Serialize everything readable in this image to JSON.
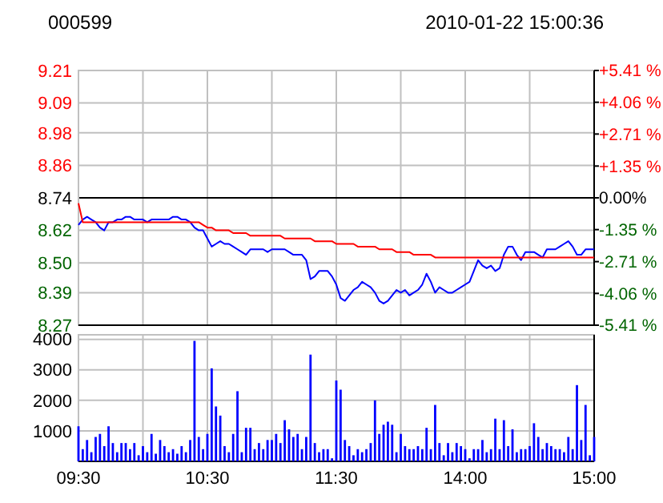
{
  "chart_data": [
    {
      "type": "line",
      "title": "000599",
      "subtitle": "2010-01-22 15:00:36",
      "grid": true,
      "tick_labels": "y",
      "categories": [
        null,
        null,
        null,
        null,
        null,
        null,
        null,
        null,
        null,
        null,
        null,
        null,
        null,
        null,
        null,
        null,
        null,
        null,
        null,
        null,
        null,
        null,
        null,
        null,
        null,
        null,
        null,
        null,
        null,
        null,
        null,
        null,
        null,
        null,
        null,
        null,
        null,
        null,
        null,
        null,
        null,
        null,
        null,
        null,
        null,
        null,
        null,
        null,
        null,
        null,
        null,
        null,
        null,
        null,
        null,
        null,
        null,
        null,
        null,
        null,
        null,
        null,
        null,
        null,
        null,
        null,
        null,
        null,
        null,
        null,
        null,
        null,
        null,
        null,
        null,
        null,
        null,
        null,
        null,
        null,
        null,
        null,
        null,
        null,
        null,
        null,
        null,
        null,
        null,
        null,
        null,
        null,
        null,
        null,
        null,
        null,
        null,
        null,
        null,
        null,
        null,
        null,
        null,
        null,
        null,
        null,
        null,
        null,
        null,
        null,
        null,
        null,
        null,
        null,
        null,
        null,
        null,
        null,
        null,
        null,
        null
      ],
      "ylim": [
        8.27,
        9.21
      ],
      "yticks": [
        {
          "value": 8.27,
          "label": "8.27"
        },
        {
          "value": 8.39,
          "label": "8.39"
        },
        {
          "value": 8.5,
          "label": "8.50"
        },
        {
          "value": 8.62,
          "label": "8.62"
        },
        {
          "value": 8.74,
          "label": "8.74"
        },
        {
          "value": 8.86,
          "label": "8.86"
        },
        {
          "value": 8.98,
          "label": "8.98"
        },
        {
          "value": 9.09,
          "label": "9.09"
        },
        {
          "value": 9.21,
          "label": "9.21"
        }
      ],
      "y2lim": [
        -5.41,
        5.41
      ],
      "y2ticks": [
        {
          "value": -5.41,
          "label": "-5.41 %"
        },
        {
          "value": -4.06,
          "label": "-4.06 %"
        },
        {
          "value": -2.71,
          "label": "-2.71 %"
        },
        {
          "value": -1.35,
          "label": "-1.35 %"
        },
        {
          "value": 0,
          "label": "0.00%"
        },
        {
          "value": 1.35,
          "label": "+1.35 %"
        },
        {
          "value": 2.71,
          "label": "+2.71 %"
        },
        {
          "value": 4.06,
          "label": "+4.06 %"
        },
        {
          "value": 5.41,
          "label": "+5.41 %"
        }
      ],
      "ref_lines": [
        {
          "axis": "y",
          "value": 8.74,
          "color": "#000000"
        }
      ],
      "series": [
        {
          "color": "#0000ff",
          "values": [
            8.64,
            8.66,
            8.67,
            8.66,
            8.65,
            8.63,
            8.62,
            8.65,
            8.65,
            8.66,
            8.66,
            8.67,
            8.67,
            8.66,
            8.66,
            8.66,
            8.65,
            8.66,
            8.66,
            8.66,
            8.66,
            8.66,
            8.67,
            8.67,
            8.66,
            8.66,
            8.65,
            8.63,
            8.62,
            8.62,
            8.59,
            8.56,
            8.57,
            8.58,
            8.57,
            8.57,
            8.56,
            8.55,
            8.54,
            8.53,
            8.55,
            8.55,
            8.55,
            8.55,
            8.54,
            8.55,
            8.55,
            8.55,
            8.55,
            8.54,
            8.53,
            8.53,
            8.53,
            8.51,
            8.44,
            8.45,
            8.47,
            8.47,
            8.47,
            8.45,
            8.42,
            8.37,
            8.36,
            8.38,
            8.4,
            8.41,
            8.43,
            8.42,
            8.41,
            8.39,
            8.36,
            8.35,
            8.36,
            8.38,
            8.4,
            8.39,
            8.4,
            8.38,
            8.39,
            8.4,
            8.42,
            8.46,
            8.43,
            8.39,
            8.41,
            8.4,
            8.39,
            8.39,
            8.4,
            8.41,
            8.42,
            8.43,
            8.47,
            8.51,
            8.49,
            8.48,
            8.49,
            8.47,
            8.48,
            8.53,
            8.56,
            8.56,
            8.53,
            8.51,
            8.54,
            8.54,
            8.54,
            8.53,
            8.52,
            8.55,
            8.55,
            8.55,
            8.56,
            8.57,
            8.58,
            8.56,
            8.53,
            8.53,
            8.55,
            8.55,
            8.55
          ]
        },
        {
          "color": "#ff0000",
          "values": [
            8.72,
            8.65,
            8.65,
            8.65,
            8.65,
            8.65,
            8.65,
            8.65,
            8.65,
            8.65,
            8.65,
            8.65,
            8.65,
            8.65,
            8.65,
            8.65,
            8.65,
            8.65,
            8.65,
            8.65,
            8.65,
            8.65,
            8.65,
            8.65,
            8.65,
            8.65,
            8.65,
            8.65,
            8.65,
            8.64,
            8.63,
            8.63,
            8.62,
            8.62,
            8.62,
            8.62,
            8.61,
            8.61,
            8.61,
            8.61,
            8.6,
            8.6,
            8.6,
            8.6,
            8.6,
            8.6,
            8.6,
            8.6,
            8.59,
            8.59,
            8.59,
            8.59,
            8.59,
            8.59,
            8.59,
            8.58,
            8.58,
            8.58,
            8.58,
            8.58,
            8.57,
            8.57,
            8.57,
            8.57,
            8.57,
            8.56,
            8.56,
            8.56,
            8.56,
            8.56,
            8.55,
            8.55,
            8.55,
            8.55,
            8.54,
            8.54,
            8.54,
            8.54,
            8.53,
            8.53,
            8.53,
            8.53,
            8.53,
            8.52,
            8.52,
            8.52,
            8.52,
            8.52,
            8.52,
            8.52,
            8.52,
            8.52,
            8.52,
            8.52,
            8.52,
            8.52,
            8.52,
            8.52,
            8.52,
            8.52,
            8.52,
            8.52,
            8.52,
            8.52,
            8.52,
            8.52,
            8.52,
            8.52,
            8.52,
            8.52,
            8.52,
            8.52,
            8.52,
            8.52,
            8.52,
            8.52,
            8.52,
            8.52,
            8.52,
            8.52,
            8.52
          ]
        }
      ]
    },
    {
      "type": "bar",
      "grid": true,
      "color": "#0000ff",
      "categories": [
        "09:30",
        null,
        null,
        null,
        null,
        null,
        null,
        null,
        null,
        null,
        null,
        null,
        null,
        null,
        null,
        null,
        null,
        null,
        null,
        null,
        null,
        null,
        null,
        null,
        null,
        null,
        null,
        null,
        null,
        null,
        "10:30",
        null,
        null,
        null,
        null,
        null,
        null,
        null,
        null,
        null,
        null,
        null,
        null,
        null,
        null,
        null,
        null,
        null,
        null,
        null,
        null,
        null,
        null,
        null,
        null,
        null,
        null,
        null,
        null,
        null,
        "11:30",
        null,
        null,
        null,
        null,
        null,
        null,
        null,
        null,
        null,
        null,
        null,
        null,
        null,
        null,
        null,
        null,
        null,
        null,
        null,
        null,
        null,
        null,
        null,
        null,
        null,
        null,
        null,
        null,
        null,
        "14:00",
        null,
        null,
        null,
        null,
        null,
        null,
        null,
        null,
        null,
        null,
        null,
        null,
        null,
        null,
        null,
        null,
        null,
        null,
        null,
        null,
        null,
        null,
        null,
        null,
        null,
        null,
        null,
        null,
        null,
        "15:00"
      ],
      "ylim": [
        0,
        4150
      ],
      "yticks": [
        {
          "value": 0,
          "label": null
        },
        1000,
        2000,
        3000,
        4000
      ],
      "values": [
        1150,
        400,
        700,
        300,
        800,
        900,
        500,
        1150,
        600,
        300,
        600,
        600,
        400,
        600,
        200,
        500,
        300,
        900,
        250,
        700,
        500,
        300,
        400,
        250,
        500,
        300,
        700,
        3950,
        800,
        400,
        900,
        3050,
        1800,
        1500,
        500,
        300,
        900,
        2300,
        300,
        1100,
        1100,
        400,
        600,
        400,
        700,
        700,
        900,
        600,
        1350,
        1050,
        800,
        900,
        400,
        800,
        3500,
        600,
        300,
        400,
        400,
        100,
        2650,
        2350,
        700,
        500,
        200,
        400,
        300,
        400,
        600,
        2000,
        900,
        1200,
        1300,
        1200,
        300,
        900,
        500,
        400,
        400,
        500,
        400,
        1100,
        400,
        1850,
        600,
        200,
        600,
        300,
        600,
        500,
        400,
        100,
        400,
        400,
        700,
        300,
        400,
        1400,
        400,
        1350,
        500,
        1050,
        300,
        400,
        400,
        500,
        1250,
        800,
        400,
        600,
        500,
        400,
        400,
        300,
        800,
        400,
        2500,
        700,
        1850,
        200,
        800
      ]
    }
  ]
}
